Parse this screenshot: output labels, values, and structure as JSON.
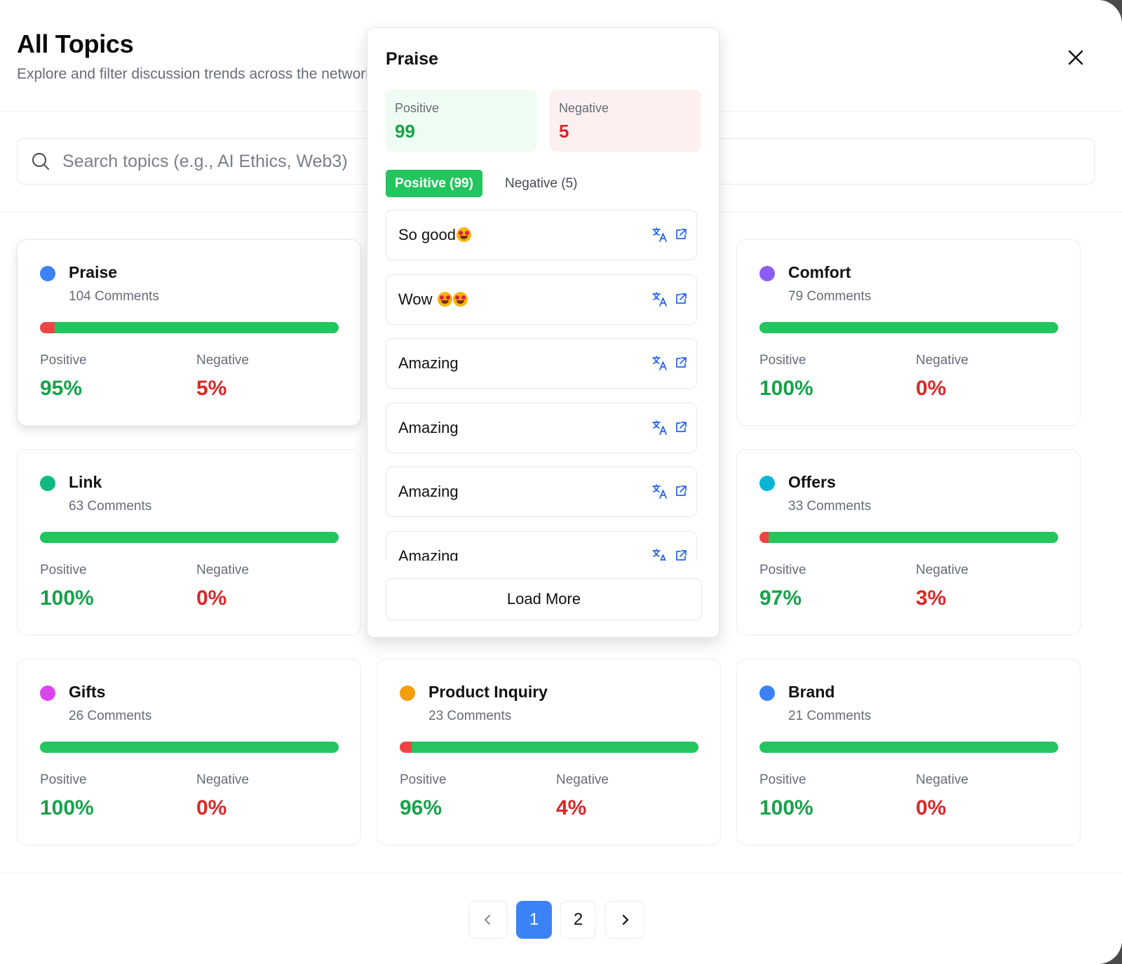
{
  "header": {
    "title": "All Topics",
    "subtitle": "Explore and filter discussion trends across the network"
  },
  "search": {
    "placeholder": "Search topics (e.g., AI Ethics, Web3)",
    "value": ""
  },
  "labels": {
    "positive": "Positive",
    "negative": "Negative"
  },
  "topics": [
    {
      "name": "Praise",
      "comments": "104 Comments",
      "positive": "95%",
      "negative": "5%",
      "negative_fraction": 0.05,
      "color": "#3b82f6"
    },
    {
      "name": "",
      "comments": "",
      "positive": "",
      "negative": "",
      "negative_fraction": 0,
      "color": "#ffffff"
    },
    {
      "name": "Comfort",
      "comments": "79 Comments",
      "positive": "100%",
      "negative": "0%",
      "negative_fraction": 0.0,
      "color": "#8b5cf6"
    },
    {
      "name": "Link",
      "comments": "63 Comments",
      "positive": "100%",
      "negative": "0%",
      "negative_fraction": 0.0,
      "color": "#10b981"
    },
    {
      "name": "",
      "comments": "",
      "positive": "",
      "negative": "",
      "negative_fraction": 0,
      "color": "#ffffff"
    },
    {
      "name": "Offers",
      "comments": "33 Comments",
      "positive": "97%",
      "negative": "3%",
      "negative_fraction": 0.03,
      "color": "#06b6d4"
    },
    {
      "name": "Gifts",
      "comments": "26 Comments",
      "positive": "100%",
      "negative": "0%",
      "negative_fraction": 0.0,
      "color": "#d946ef"
    },
    {
      "name": "Product Inquiry",
      "comments": "23 Comments",
      "positive": "96%",
      "negative": "4%",
      "negative_fraction": 0.04,
      "color": "#f59e0b"
    },
    {
      "name": "Brand",
      "comments": "21 Comments",
      "positive": "100%",
      "negative": "0%",
      "negative_fraction": 0.0,
      "color": "#3b82f6"
    }
  ],
  "popover": {
    "title": "Praise",
    "summary": {
      "positive_label": "Positive",
      "positive_value": "99",
      "negative_label": "Negative",
      "negative_value": "5"
    },
    "tabs": {
      "positive": "Positive (99)",
      "negative": "Negative (5)"
    },
    "comments": [
      {
        "text": "So good",
        "emoji_count": 1
      },
      {
        "text": "Wow ",
        "emoji_count": 2
      },
      {
        "text": "Amazing",
        "emoji_count": 0
      },
      {
        "text": "Amazing",
        "emoji_count": 0
      },
      {
        "text": "Amazing",
        "emoji_count": 0
      },
      {
        "text": "Amazing",
        "emoji_count": 0
      }
    ],
    "icons": {
      "translate": "translate-icon",
      "open": "external-link-icon"
    },
    "load_more": "Load More"
  },
  "pagination": {
    "prev": "chevron-left-icon",
    "pages": [
      "1",
      "2"
    ],
    "current": "1",
    "next": "chevron-right-icon"
  },
  "colors": {
    "positive": "#16a34a",
    "negative": "#dc2626",
    "bar_positive": "#22c55e",
    "bar_negative": "#ef4444",
    "accent": "#3b82f6"
  }
}
